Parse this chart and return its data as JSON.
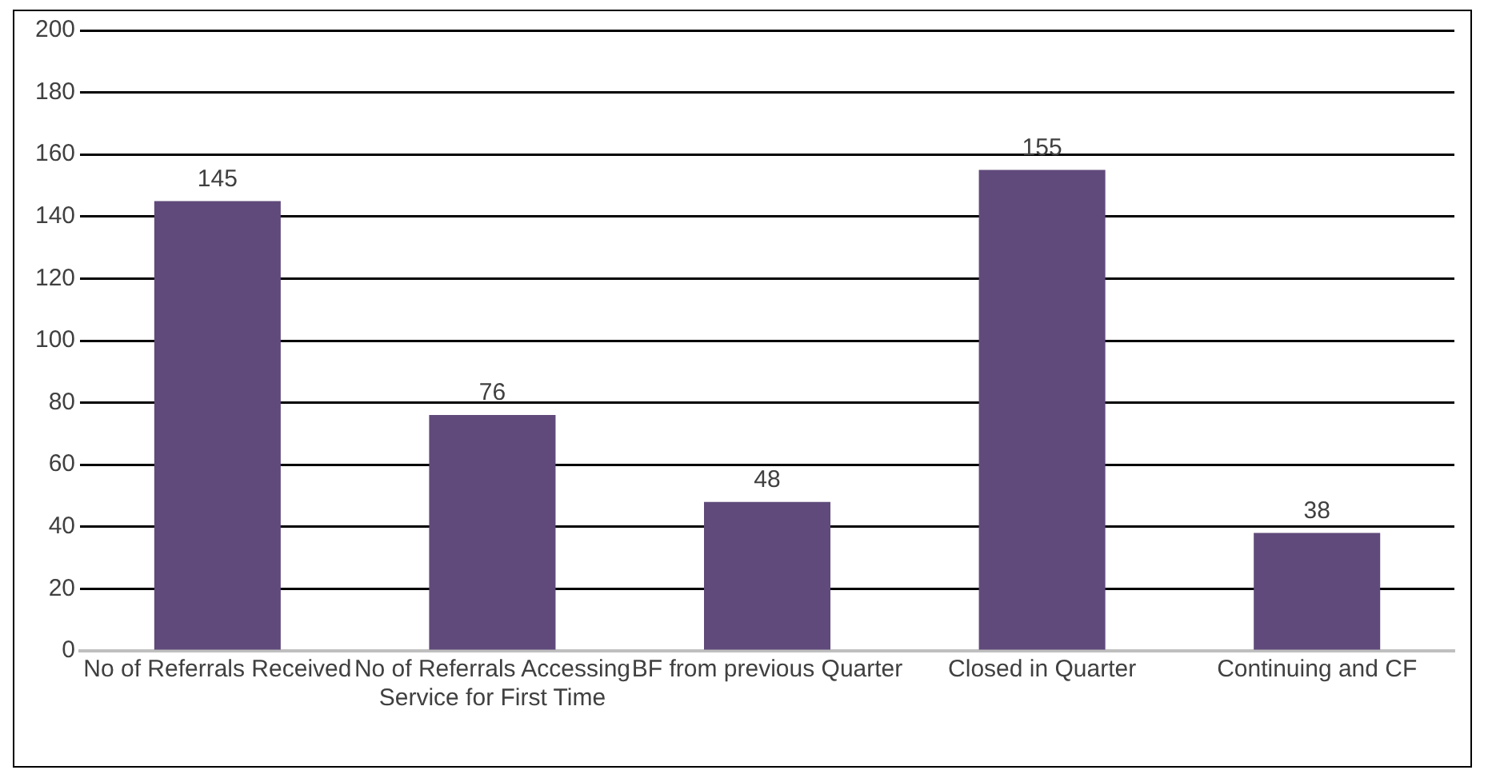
{
  "chart_data": {
    "type": "bar",
    "categories": [
      "No of Referrals Received",
      "No of Referrals Accessing Service for First Time",
      "BF from previous Quarter",
      "Closed in Quarter",
      "Continuing and CF"
    ],
    "values": [
      145,
      76,
      48,
      155,
      38
    ],
    "color": "#604a7b",
    "ylim": [
      0,
      200
    ],
    "yticks": [
      0,
      20,
      40,
      60,
      80,
      100,
      120,
      140,
      160,
      180,
      200
    ],
    "grid": "y",
    "data_labels": true
  }
}
